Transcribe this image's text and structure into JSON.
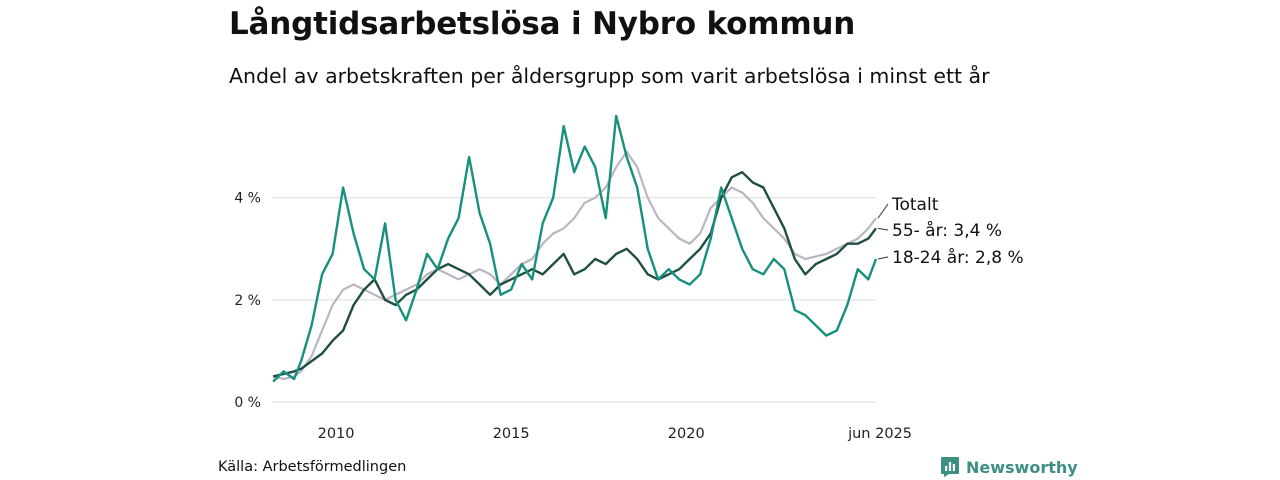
{
  "header": {
    "title": "Långtidsarbetslösa i Nybro kommun",
    "subtitle": "Andel av arbetskraften per åldersgrupp som varit arbetslösa i minst ett år"
  },
  "footer": {
    "source": "Källa: Arbetsförmedlingen",
    "brand": "Newsworthy",
    "brand_icon": "bar-chart-icon",
    "brand_color": "#3d8f84"
  },
  "chart_data": {
    "type": "line",
    "xlabel": "",
    "ylabel": "",
    "xlim": [
      2008.17,
      2025.42
    ],
    "ylim": [
      0,
      5.6
    ],
    "y_ticks": [
      {
        "value": 0,
        "label": "0 %"
      },
      {
        "value": 2,
        "label": "2 %"
      },
      {
        "value": 4,
        "label": "4 %"
      }
    ],
    "x_ticks": [
      {
        "value": 2010,
        "label": "2010"
      },
      {
        "value": 2015,
        "label": "2015"
      },
      {
        "value": 2020,
        "label": "2020"
      },
      {
        "value": 2025.42,
        "label": "jun 2025"
      }
    ],
    "grid": true,
    "legend": "direct labels at line ends (right)",
    "series": [
      {
        "name": "Totalt",
        "color": "#b9b6c2",
        "end_label": "Totalt",
        "x": [
          2008.2,
          2008.5,
          2008.8,
          2009.0,
          2009.3,
          2009.6,
          2009.9,
          2010.2,
          2010.5,
          2010.8,
          2011.1,
          2011.4,
          2011.7,
          2012.0,
          2012.3,
          2012.6,
          2012.9,
          2013.2,
          2013.5,
          2013.8,
          2014.1,
          2014.4,
          2014.7,
          2015.0,
          2015.3,
          2015.6,
          2015.9,
          2016.2,
          2016.5,
          2016.8,
          2017.1,
          2017.4,
          2017.7,
          2018.0,
          2018.3,
          2018.6,
          2018.9,
          2019.2,
          2019.5,
          2019.8,
          2020.1,
          2020.4,
          2020.7,
          2021.0,
          2021.3,
          2021.6,
          2021.9,
          2022.2,
          2022.5,
          2022.8,
          2023.1,
          2023.4,
          2023.7,
          2024.0,
          2024.3,
          2024.6,
          2024.9,
          2025.2,
          2025.42
        ],
        "values": [
          0.5,
          0.45,
          0.5,
          0.6,
          0.9,
          1.4,
          1.9,
          2.2,
          2.3,
          2.2,
          2.1,
          2.0,
          2.1,
          2.2,
          2.3,
          2.5,
          2.6,
          2.5,
          2.4,
          2.5,
          2.6,
          2.5,
          2.3,
          2.5,
          2.7,
          2.8,
          3.1,
          3.3,
          3.4,
          3.6,
          3.9,
          4.0,
          4.2,
          4.6,
          4.9,
          4.6,
          4.0,
          3.6,
          3.4,
          3.2,
          3.1,
          3.3,
          3.8,
          4.0,
          4.2,
          4.1,
          3.9,
          3.6,
          3.4,
          3.2,
          2.9,
          2.8,
          2.85,
          2.9,
          3.0,
          3.1,
          3.2,
          3.4,
          3.6
        ]
      },
      {
        "name": "55- år",
        "color": "#1f4e45",
        "end_label": "55- år: 3,4 %",
        "x": [
          2008.2,
          2008.5,
          2008.8,
          2009.0,
          2009.3,
          2009.6,
          2009.9,
          2010.2,
          2010.5,
          2010.8,
          2011.1,
          2011.4,
          2011.7,
          2012.0,
          2012.3,
          2012.6,
          2012.9,
          2013.2,
          2013.5,
          2013.8,
          2014.1,
          2014.4,
          2014.7,
          2015.0,
          2015.3,
          2015.6,
          2015.9,
          2016.2,
          2016.5,
          2016.8,
          2017.1,
          2017.4,
          2017.7,
          2018.0,
          2018.3,
          2018.6,
          2018.9,
          2019.2,
          2019.5,
          2019.8,
          2020.1,
          2020.4,
          2020.7,
          2021.0,
          2021.3,
          2021.6,
          2021.9,
          2022.2,
          2022.5,
          2022.8,
          2023.1,
          2023.4,
          2023.7,
          2024.0,
          2024.3,
          2024.6,
          2024.9,
          2025.2,
          2025.42
        ],
        "values": [
          0.5,
          0.55,
          0.6,
          0.65,
          0.8,
          0.95,
          1.2,
          1.4,
          1.9,
          2.2,
          2.4,
          2.0,
          1.9,
          2.1,
          2.2,
          2.4,
          2.6,
          2.7,
          2.6,
          2.5,
          2.3,
          2.1,
          2.3,
          2.4,
          2.5,
          2.6,
          2.5,
          2.7,
          2.9,
          2.5,
          2.6,
          2.8,
          2.7,
          2.9,
          3.0,
          2.8,
          2.5,
          2.4,
          2.5,
          2.6,
          2.8,
          3.0,
          3.3,
          4.0,
          4.4,
          4.5,
          4.3,
          4.2,
          3.8,
          3.4,
          2.8,
          2.5,
          2.7,
          2.8,
          2.9,
          3.1,
          3.1,
          3.2,
          3.4
        ]
      },
      {
        "name": "18-24 år",
        "color": "#17907e",
        "end_label": "18-24 år: 2,8 %",
        "x": [
          2008.2,
          2008.5,
          2008.8,
          2009.0,
          2009.3,
          2009.6,
          2009.9,
          2010.2,
          2010.5,
          2010.8,
          2011.1,
          2011.4,
          2011.7,
          2012.0,
          2012.3,
          2012.6,
          2012.9,
          2013.2,
          2013.5,
          2013.8,
          2014.1,
          2014.4,
          2014.7,
          2015.0,
          2015.3,
          2015.6,
          2015.9,
          2016.2,
          2016.5,
          2016.8,
          2017.1,
          2017.4,
          2017.7,
          2018.0,
          2018.3,
          2018.6,
          2018.9,
          2019.2,
          2019.5,
          2019.8,
          2020.1,
          2020.4,
          2020.7,
          2021.0,
          2021.3,
          2021.6,
          2021.9,
          2022.2,
          2022.5,
          2022.8,
          2023.1,
          2023.4,
          2023.7,
          2024.0,
          2024.3,
          2024.6,
          2024.9,
          2025.2,
          2025.42
        ],
        "values": [
          0.4,
          0.6,
          0.45,
          0.8,
          1.5,
          2.5,
          2.9,
          4.2,
          3.3,
          2.6,
          2.4,
          3.5,
          2.0,
          1.6,
          2.2,
          2.9,
          2.6,
          3.2,
          3.6,
          4.8,
          3.7,
          3.1,
          2.1,
          2.2,
          2.7,
          2.4,
          3.5,
          4.0,
          5.4,
          4.5,
          5.0,
          4.6,
          3.6,
          5.6,
          4.8,
          4.2,
          3.0,
          2.4,
          2.6,
          2.4,
          2.3,
          2.5,
          3.2,
          4.2,
          3.6,
          3.0,
          2.6,
          2.5,
          2.8,
          2.6,
          1.8,
          1.7,
          1.5,
          1.3,
          1.4,
          1.9,
          2.6,
          2.4,
          2.8
        ]
      }
    ]
  }
}
